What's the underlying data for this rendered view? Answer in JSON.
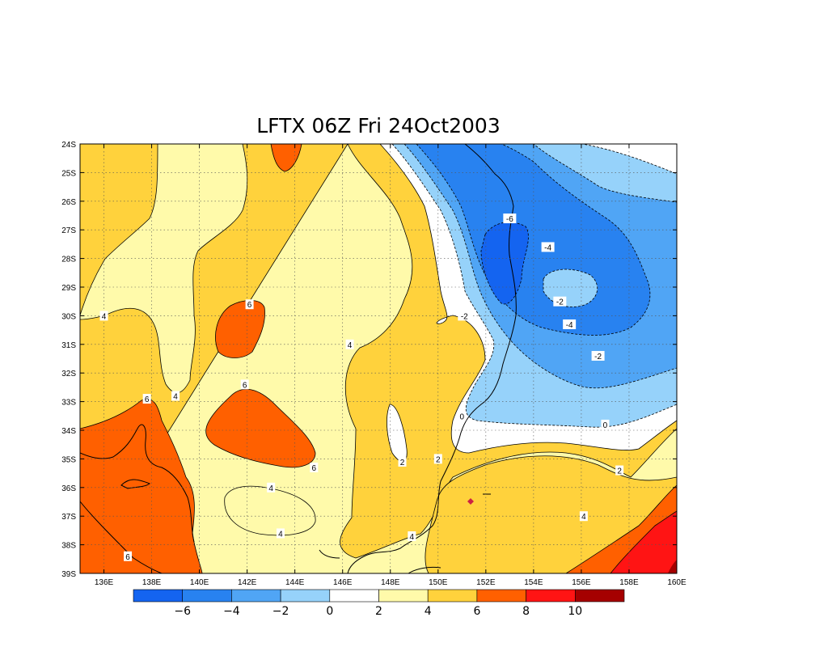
{
  "map": {
    "title": "LFTX 06Z Fri 24Oct2003",
    "lon_range": [
      135,
      160
    ],
    "lat_range": [
      -39,
      -24
    ],
    "lon_ticks": [
      {
        "v": 136,
        "label": "136E"
      },
      {
        "v": 138,
        "label": "138E"
      },
      {
        "v": 140,
        "label": "140E"
      },
      {
        "v": 142,
        "label": "142E"
      },
      {
        "v": 144,
        "label": "144E"
      },
      {
        "v": 146,
        "label": "146E"
      },
      {
        "v": 148,
        "label": "148E"
      },
      {
        "v": 150,
        "label": "150E"
      },
      {
        "v": 152,
        "label": "152E"
      },
      {
        "v": 154,
        "label": "154E"
      },
      {
        "v": 156,
        "label": "156E"
      },
      {
        "v": 158,
        "label": "158E"
      },
      {
        "v": 160,
        "label": "160E"
      }
    ],
    "lat_ticks": [
      {
        "v": -24,
        "label": "24S"
      },
      {
        "v": -25,
        "label": "25S"
      },
      {
        "v": -26,
        "label": "26S"
      },
      {
        "v": -27,
        "label": "27S"
      },
      {
        "v": -28,
        "label": "28S"
      },
      {
        "v": -29,
        "label": "29S"
      },
      {
        "v": -30,
        "label": "30S"
      },
      {
        "v": -31,
        "label": "31S"
      },
      {
        "v": -32,
        "label": "32S"
      },
      {
        "v": -33,
        "label": "33S"
      },
      {
        "v": -34,
        "label": "34S"
      },
      {
        "v": -35,
        "label": "35S"
      },
      {
        "v": -36,
        "label": "36S"
      },
      {
        "v": -37,
        "label": "37S"
      },
      {
        "v": -38,
        "label": "38S"
      },
      {
        "v": -39,
        "label": "39S"
      }
    ],
    "contour_labels": [
      {
        "text": "-6",
        "lon": 153.0,
        "lat": -26.6
      },
      {
        "text": "-4",
        "lon": 154.6,
        "lat": -27.6
      },
      {
        "text": "-2",
        "lon": 155.1,
        "lat": -29.5
      },
      {
        "text": "-4",
        "lon": 155.5,
        "lat": -30.3
      },
      {
        "text": "-2",
        "lon": 156.7,
        "lat": -31.4
      },
      {
        "text": "-2",
        "lon": 151.1,
        "lat": -30.0
      },
      {
        "text": "0",
        "lon": 157.0,
        "lat": -33.8
      },
      {
        "text": "0",
        "lon": 151.0,
        "lat": -33.5
      },
      {
        "text": "2",
        "lon": 157.6,
        "lat": -35.4
      },
      {
        "text": "2",
        "lon": 148.5,
        "lat": -35.1
      },
      {
        "text": "2",
        "lon": 150.0,
        "lat": -35.0
      },
      {
        "text": "4",
        "lon": 146.3,
        "lat": -31.0
      },
      {
        "text": "4",
        "lon": 136.0,
        "lat": -30.0
      },
      {
        "text": "4",
        "lon": 139.0,
        "lat": -32.8
      },
      {
        "text": "4",
        "lon": 143.0,
        "lat": -36.0
      },
      {
        "text": "4",
        "lon": 143.4,
        "lat": -37.6
      },
      {
        "text": "4",
        "lon": 148.9,
        "lat": -37.7
      },
      {
        "text": "4",
        "lon": 156.1,
        "lat": -37.0
      },
      {
        "text": "6",
        "lon": 142.1,
        "lat": -29.6
      },
      {
        "text": "6",
        "lon": 141.9,
        "lat": -32.4
      },
      {
        "text": "6",
        "lon": 137.8,
        "lat": -32.9
      },
      {
        "text": "6",
        "lon": 144.8,
        "lat": -35.3
      },
      {
        "text": "6",
        "lon": 137.0,
        "lat": -38.4
      }
    ]
  },
  "colorbar": {
    "colors": [
      "#1464f0",
      "#2882f0",
      "#50a5f5",
      "#96d2fa",
      "#ffffff",
      "#fffaaa",
      "#ffd23c",
      "#ff6000",
      "#ff1414",
      "#a50000"
    ],
    "labels": [
      {
        "v": -6,
        "label": "−6"
      },
      {
        "v": -4,
        "label": "−4"
      },
      {
        "v": -2,
        "label": "−2"
      },
      {
        "v": 0,
        "label": "0"
      },
      {
        "v": 2,
        "label": "2"
      },
      {
        "v": 4,
        "label": "4"
      },
      {
        "v": 6,
        "label": "6"
      },
      {
        "v": 8,
        "label": "8"
      },
      {
        "v": 10,
        "label": "10"
      }
    ]
  }
}
